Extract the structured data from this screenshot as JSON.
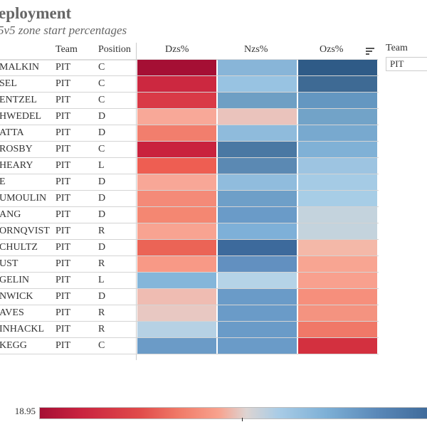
{
  "header": {
    "title": "eployment",
    "subtitle": "5v5 zone start percentages"
  },
  "columns": {
    "team": "Team",
    "position": "Position",
    "dzs": "Dzs%",
    "nzs": "Nzs%",
    "ozs": "Ozs%"
  },
  "filter": {
    "label": "Team",
    "value": "PIT"
  },
  "legend": {
    "min_label": "18.95",
    "low_color": "#a50f34",
    "mid_color": "#dddddd",
    "high_color": "#3a6595"
  },
  "rows": [
    {
      "name": "MALKIN",
      "team": "PIT",
      "pos": "C",
      "colors": [
        "#a50f34",
        "#88b5d8",
        "#2f5b87"
      ]
    },
    {
      "name": "SEL",
      "team": "PIT",
      "pos": "C",
      "colors": [
        "#cc2840",
        "#98c3e2",
        "#3e6a94"
      ]
    },
    {
      "name": "ENTZEL",
      "team": "PIT",
      "pos": "C",
      "colors": [
        "#d93a47",
        "#6e9fc4",
        "#6497c1"
      ]
    },
    {
      "name": "HWEDEL",
      "team": "PIT",
      "pos": "D",
      "colors": [
        "#f8a898",
        "#eac3bc",
        "#72a3c8"
      ]
    },
    {
      "name": "ATTA",
      "team": "PIT",
      "pos": "D",
      "colors": [
        "#f27e6d",
        "#8fbbdc",
        "#78a9cf"
      ]
    },
    {
      "name": "ROSBY",
      "team": "PIT",
      "pos": "C",
      "colors": [
        "#c9223d",
        "#4a78a3",
        "#80b1d6"
      ]
    },
    {
      "name": "HEARY",
      "team": "PIT",
      "pos": "L",
      "colors": [
        "#ee5e52",
        "#5b89b3",
        "#9dc4e1"
      ]
    },
    {
      "name": "E",
      "team": "PIT",
      "pos": "D",
      "colors": [
        "#f8a797",
        "#90bcdd",
        "#a5cbe5"
      ]
    },
    {
      "name": "UMOULIN",
      "team": "PIT",
      "pos": "D",
      "colors": [
        "#f48a78",
        "#6e9fc8",
        "#a7cde6"
      ]
    },
    {
      "name": "ANG",
      "team": "PIT",
      "pos": "D",
      "colors": [
        "#f48772",
        "#6a9bc8",
        "#c4d3dd"
      ]
    },
    {
      "name": "ORNQVIST",
      "team": "PIT",
      "pos": "R",
      "colors": [
        "#f8a391",
        "#7eb0d8",
        "#c4d3dd"
      ]
    },
    {
      "name": "CHULTZ",
      "team": "PIT",
      "pos": "D",
      "colors": [
        "#eb6456",
        "#3d6a9c",
        "#f4b8a8"
      ]
    },
    {
      "name": "UST",
      "team": "PIT",
      "pos": "R",
      "colors": [
        "#f89986",
        "#6290c0",
        "#f8a592"
      ]
    },
    {
      "name": "GELIN",
      "team": "PIT",
      "pos": "L",
      "colors": [
        "#84b6da",
        "#b5d3e7",
        "#f8a08e"
      ]
    },
    {
      "name": "NWICK",
      "team": "PIT",
      "pos": "D",
      "colors": [
        "#efbcb2",
        "#6a9bc8",
        "#f68f7c"
      ]
    },
    {
      "name": "AVES",
      "team": "PIT",
      "pos": "R",
      "colors": [
        "#e8c8c2",
        "#6a9bc8",
        "#f49380"
      ]
    },
    {
      "name": "INHACKL",
      "team": "PIT",
      "pos": "R",
      "colors": [
        "#b6d1e4",
        "#6a9bc8",
        "#f07868"
      ]
    },
    {
      "name": "KEGG",
      "team": "PIT",
      "pos": "C",
      "colors": [
        "#6b9bc7",
        "#6a9bc8",
        "#d3303f"
      ]
    }
  ]
}
